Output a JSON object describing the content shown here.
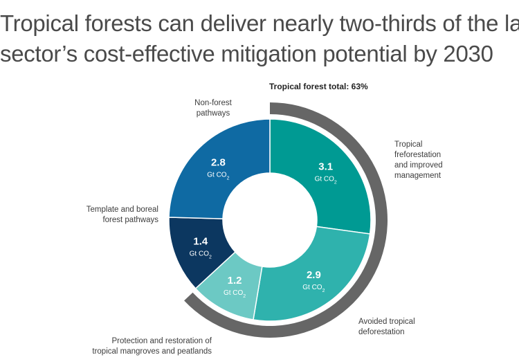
{
  "title_lines": [
    "Tropical forests can deliver nearly two-thirds of the land",
    "sector’s cost-effective mitigation potential by 2030"
  ],
  "chart_data": {
    "type": "pie",
    "variant": "donut",
    "unit_main": "Gt CO",
    "unit_sub": "2",
    "slices": [
      {
        "name_lines": [
          "Tropical",
          "freforestation",
          "and improved",
          "management"
        ],
        "value": 3.1,
        "color": "#009a93"
      },
      {
        "name_lines": [
          "Avoided tropical",
          "deforestation"
        ],
        "value": 2.9,
        "color": "#2fb2ad"
      },
      {
        "name_lines": [
          "Protection and restoration of",
          "tropical mangroves and peatlands"
        ],
        "value": 1.2,
        "color": "#6cc9c4"
      },
      {
        "name_lines": [
          "Template and boreal",
          "forest pathways"
        ],
        "value": 1.4,
        "color": "#0c3760"
      },
      {
        "name_lines": [
          "Non-forest",
          "pathways"
        ],
        "value": 2.8,
        "color": "#0f6aa3"
      }
    ],
    "highlight_arc": {
      "label": "Tropical forest total: 63%",
      "share": 0.63,
      "color": "#666666"
    }
  }
}
